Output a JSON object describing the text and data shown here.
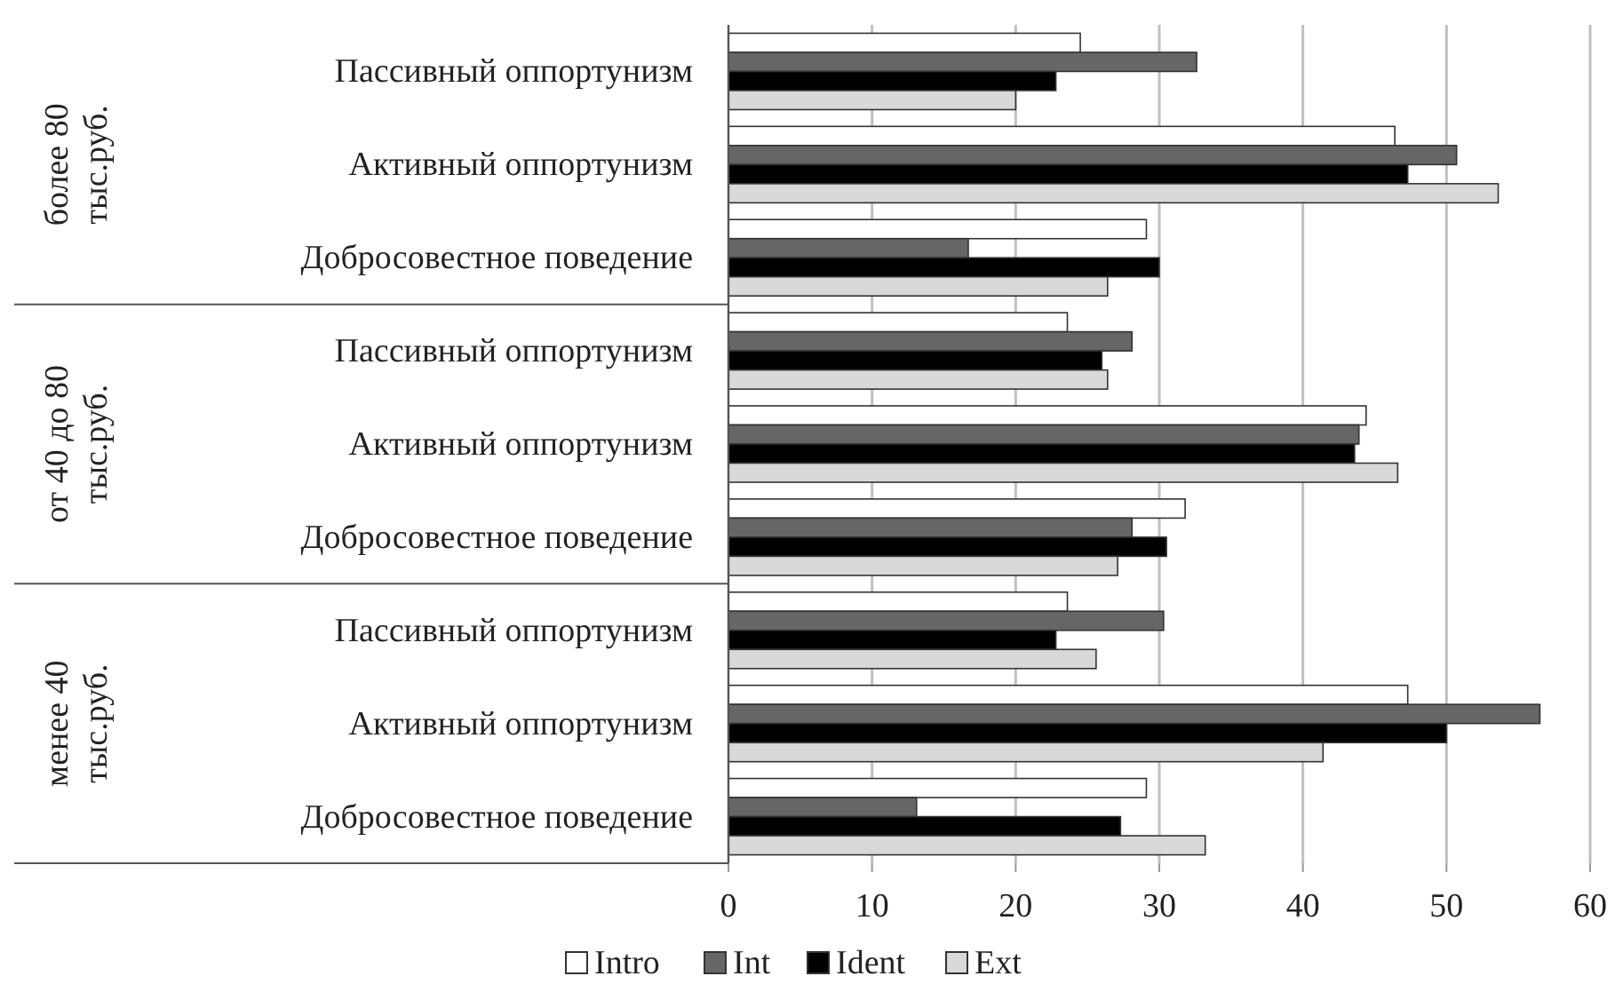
{
  "chart_data": {
    "type": "bar",
    "orientation": "horizontal",
    "categories": [
      "Пассивный оппортунизм",
      "Активный оппортунизм",
      "Добросовестное поведение",
      "Пассивный оппортунизм",
      "Активный оппортунизм",
      "Добросовестное поведение",
      "Пассивный оппортунизм",
      "Активный оппортунизм",
      "Добросовестное поведение"
    ],
    "annotations": [
      "более 80 тыс.руб.",
      "от 40 до 80 тыс.руб.",
      "менее 40 тыс.руб."
    ],
    "series": [
      {
        "name": "Intro",
        "color": "#ffffff",
        "values": [
          24.5,
          46.4,
          29.1,
          23.6,
          44.4,
          31.8,
          23.6,
          47.3,
          29.1
        ]
      },
      {
        "name": "Int",
        "color": "#666666",
        "values": [
          32.6,
          50.7,
          16.7,
          28.1,
          43.9,
          28.1,
          30.3,
          56.5,
          13.1
        ]
      },
      {
        "name": "Ident",
        "color": "#000000",
        "values": [
          22.8,
          47.3,
          30.0,
          26.0,
          43.6,
          30.5,
          22.8,
          50.0,
          27.3
        ]
      },
      {
        "name": "Ext",
        "color": "#d9d9d9",
        "values": [
          20.0,
          53.6,
          26.4,
          26.4,
          46.6,
          27.1,
          25.6,
          41.4,
          33.2
        ]
      }
    ],
    "xlim": [
      0,
      60
    ],
    "xticks": [
      0,
      10,
      20,
      30,
      40,
      50,
      60
    ],
    "grid": "x",
    "legend": "bottom"
  }
}
